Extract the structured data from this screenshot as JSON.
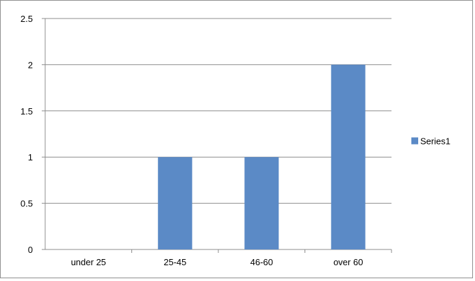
{
  "chart_data": {
    "type": "bar",
    "categories": [
      "under 25",
      "25-45",
      "46-60",
      "over 60"
    ],
    "series": [
      {
        "name": "Series1",
        "values": [
          0,
          1,
          1,
          2
        ],
        "color": "#5B8AC6"
      }
    ],
    "ylim": [
      0,
      2.5
    ],
    "yticks": [
      "0",
      "0.5",
      "1",
      "1.5",
      "2",
      "2.5"
    ],
    "grid": true,
    "legend": "right"
  }
}
